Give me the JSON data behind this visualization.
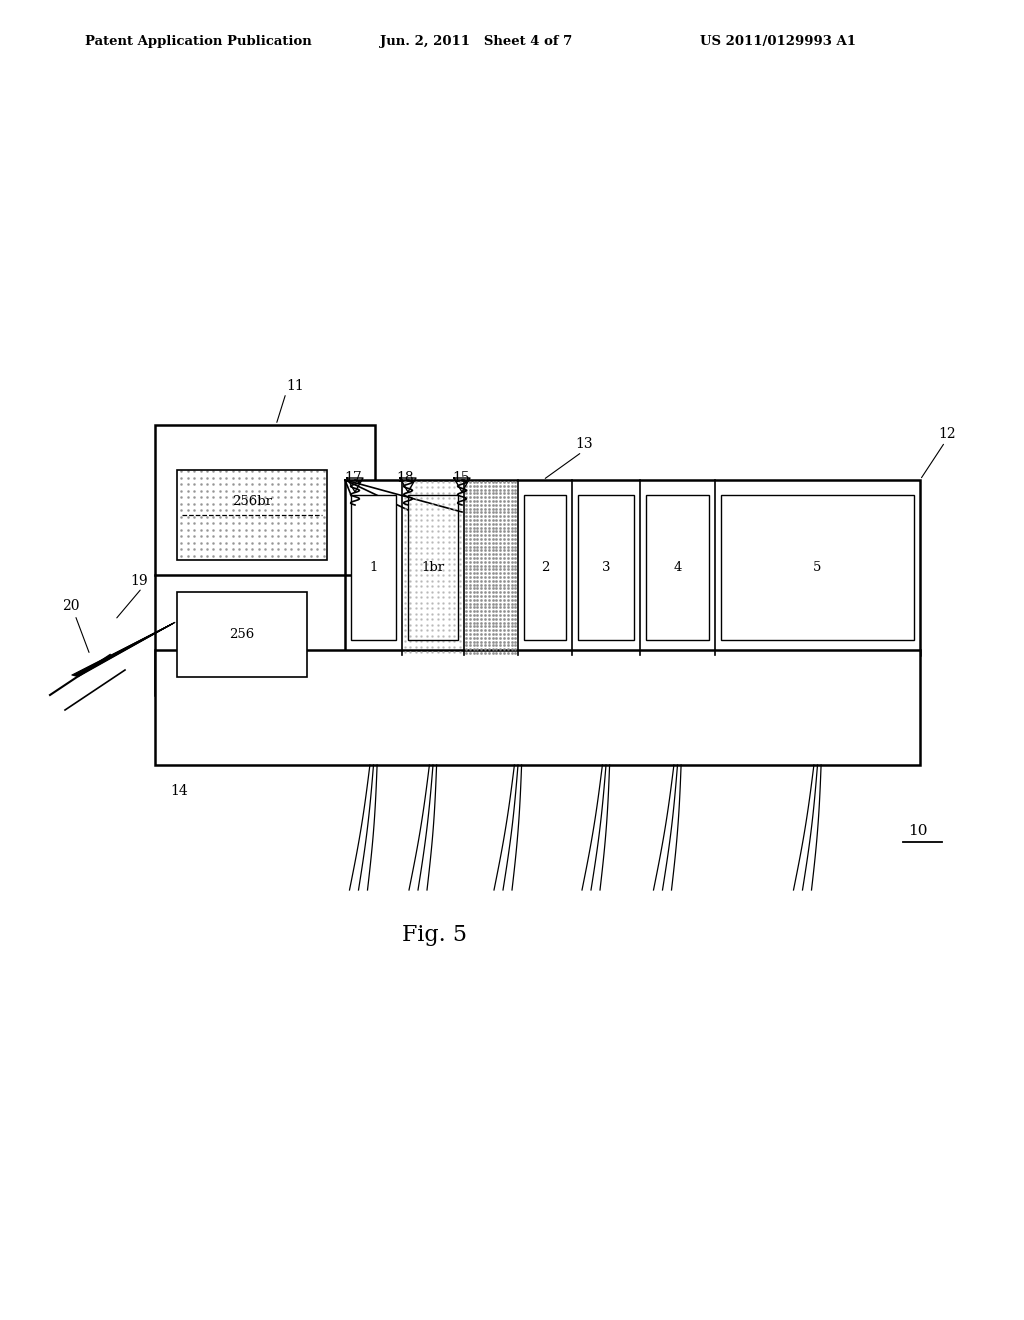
{
  "bg_color": "#ffffff",
  "header_left": "Patent Application Publication",
  "header_mid": "Jun. 2, 2011   Sheet 4 of 7",
  "header_right": "US 2011/0129993 A1",
  "fig_label": "Fig. 5"
}
